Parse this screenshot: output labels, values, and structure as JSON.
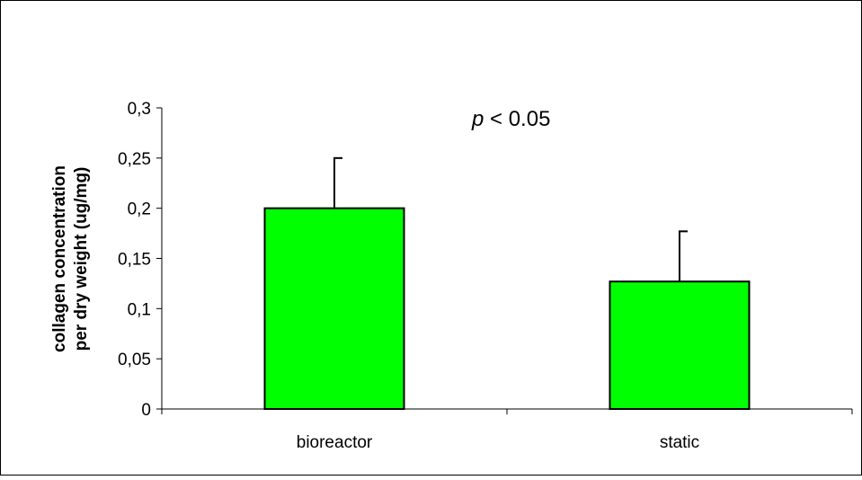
{
  "chart_data": {
    "type": "bar",
    "title": "",
    "categories": [
      "bioreactor",
      "static"
    ],
    "values": [
      0.2,
      0.127
    ],
    "error_plus": [
      0.05,
      0.05
    ],
    "ylabel_lines": [
      "collagen concentration",
      "per dry weight (ug/mg)"
    ],
    "xlabel": "",
    "ylim": [
      0,
      0.3
    ],
    "yticks": [
      0,
      0.05,
      0.1,
      0.15,
      0.2,
      0.25,
      0.3
    ],
    "ytick_labels": [
      "0",
      "0,05",
      "0,1",
      "0,15",
      "0,2",
      "0,25",
      "0,3"
    ],
    "annotation": {
      "italic": "p",
      "rest": " < 0.05"
    },
    "bar_color": "#00ff00",
    "grid": false,
    "legend": "none"
  }
}
